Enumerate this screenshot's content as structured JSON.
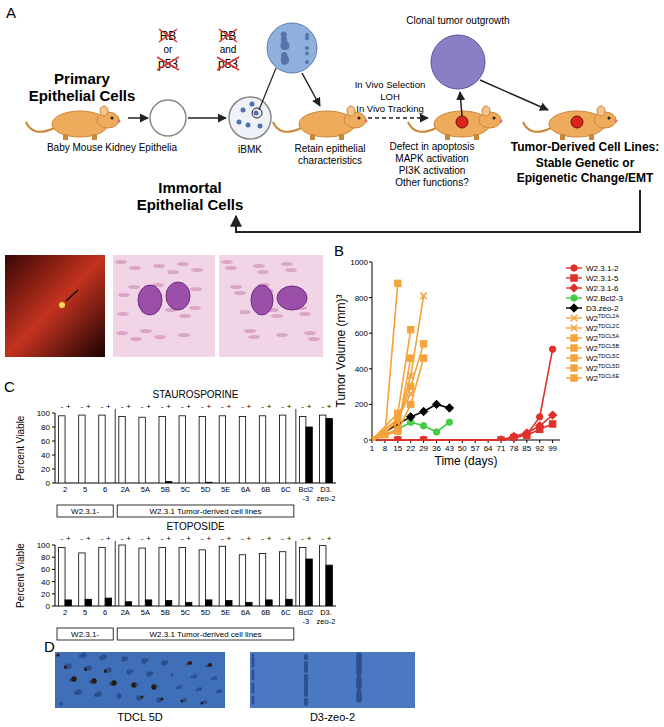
{
  "panel_labels": [
    "A",
    "B",
    "C",
    "D"
  ],
  "diagram": {
    "primary": [
      "Primary",
      "Epithelial Cells"
    ],
    "source": "Baby Mouse Kidney Epithelia",
    "single_loss": {
      "genes": [
        "RB",
        "p53"
      ],
      "joiner": "or"
    },
    "double_loss": {
      "genes": [
        "RB",
        "p53"
      ],
      "joiner": "and"
    },
    "culture": "iBMK",
    "immortal": [
      "Immortal",
      "Epithelial Cells"
    ],
    "selection": [
      "In Vivo Selection",
      "LOH",
      "In Vivo Tracking"
    ],
    "retain": [
      "Retain epithelial",
      "characteristics"
    ],
    "clonal": "Clonal tumor outgrowth",
    "functions": [
      "Defect in apoptosis",
      "MAPK activation",
      "PI3K activation",
      "Other functions?"
    ],
    "outcome_title": "Tumor-Derived Cell Lines:",
    "outcome": [
      "Stable Genetic or",
      "Epigenetic Change/EMT"
    ]
  },
  "images": {
    "captions": [
      "TDCL 5D",
      "D3-zeo-2"
    ]
  },
  "chart_data": [
    {
      "type": "line",
      "y_label": "Tumor Volume (mm)³",
      "x_label": "Time (days)",
      "xlim": [
        1,
        103
      ],
      "xticks": [
        1,
        8,
        15,
        22,
        29,
        36,
        43,
        50,
        57,
        64,
        71,
        78,
        85,
        92,
        99
      ],
      "ylim": [
        0,
        1000
      ],
      "yticks": [
        0,
        200,
        400,
        600,
        800,
        1000
      ],
      "legend": "right",
      "series": [
        {
          "name": "W2.3.1-2",
          "color": "#e0302a",
          "marker": "circle",
          "x": [
            1,
            15,
            29,
            71,
            78,
            85,
            92,
            99
          ],
          "values": [
            0,
            0,
            0,
            0,
            10,
            30,
            130,
            510
          ]
        },
        {
          "name": "W2.3.1-5",
          "color": "#e0302a",
          "marker": "square",
          "x": [
            1,
            15,
            29,
            71,
            78,
            85,
            92,
            99
          ],
          "values": [
            0,
            0,
            0,
            0,
            15,
            25,
            60,
            90
          ]
        },
        {
          "name": "W2.3.1-6",
          "color": "#e0302a",
          "marker": "diamond",
          "x": [
            1,
            15,
            29,
            71,
            78,
            85,
            92,
            99
          ],
          "values": [
            0,
            0,
            0,
            0,
            20,
            40,
            80,
            140
          ]
        },
        {
          "name": "W2.Bcl2-3",
          "color": "#44cc44",
          "marker": "circle",
          "x": [
            1,
            15,
            22,
            29,
            36,
            43
          ],
          "values": [
            0,
            60,
            100,
            80,
            45,
            100
          ]
        },
        {
          "name": "D3.zeo-2",
          "color": "#000000",
          "marker": "diamond",
          "x": [
            1,
            15,
            22,
            29,
            36,
            43
          ],
          "values": [
            0,
            90,
            130,
            160,
            200,
            180
          ]
        },
        {
          "name": "W2TDCL2A",
          "color": "#f5a33a",
          "marker": "x",
          "x": [
            1,
            8,
            15,
            22
          ],
          "values": [
            0,
            40,
            120,
            260
          ]
        },
        {
          "name": "W2TDCL2C",
          "color": "#f5a33a",
          "marker": "x",
          "x": [
            1,
            15,
            22,
            29
          ],
          "values": [
            0,
            100,
            360,
            810
          ]
        },
        {
          "name": "W2TDCL5A",
          "color": "#f5a33a",
          "marker": "square",
          "x": [
            1,
            8,
            15
          ],
          "values": [
            0,
            30,
            880
          ]
        },
        {
          "name": "W2TDCL5B",
          "color": "#f5a33a",
          "marker": "square",
          "x": [
            1,
            15,
            22
          ],
          "values": [
            0,
            150,
            620
          ]
        },
        {
          "name": "W2TDCL5C",
          "color": "#f5a33a",
          "marker": "square",
          "x": [
            1,
            15,
            22
          ],
          "values": [
            0,
            60,
            460
          ]
        },
        {
          "name": "W2TDCL5D",
          "color": "#f5a33a",
          "marker": "square",
          "x": [
            1,
            15,
            22,
            29
          ],
          "values": [
            0,
            120,
            300,
            540
          ]
        },
        {
          "name": "W2TDCL6E",
          "color": "#f5a33a",
          "marker": "square",
          "x": [
            1,
            15,
            22,
            29
          ],
          "values": [
            0,
            50,
            200,
            460
          ]
        }
      ]
    },
    {
      "type": "bar",
      "title": "STAUROSPORINE",
      "y_label": "Percent Viable",
      "categories": [
        "2",
        "5",
        "6",
        "2A",
        "5A",
        "5B",
        "5C",
        "5D",
        "5E",
        "6A",
        "6B",
        "6C",
        "Bcl2\n-3",
        "D3.\nzeo-2"
      ],
      "ylim": [
        0,
        100
      ],
      "yticks": [
        0,
        20,
        40,
        60,
        80,
        100
      ],
      "series": [
        {
          "name": "-",
          "color": "#ffffff",
          "values": [
            96,
            97,
            97,
            95,
            94,
            95,
            96,
            95,
            96,
            95,
            96,
            97,
            95,
            97
          ]
        },
        {
          "name": "+",
          "color": "#000000",
          "values": [
            0,
            0,
            0,
            0,
            0,
            2,
            0,
            1,
            0,
            0,
            0,
            0,
            80,
            92
          ]
        }
      ],
      "groups": [
        {
          "label": "W2.3.1-",
          "start": 0,
          "end": 2
        },
        {
          "label": "W2.3.1 Tumor-derived cell lines",
          "start": 3,
          "end": 11
        }
      ]
    },
    {
      "type": "bar",
      "title": "ETOPOSIDE",
      "y_label": "Percent Viable",
      "categories": [
        "2",
        "5",
        "6",
        "2A",
        "5A",
        "5B",
        "5C",
        "5D",
        "5E",
        "6A",
        "6B",
        "6C",
        "Bcl2\n-3",
        "D3.\nzeo-2"
      ],
      "ylim": [
        0,
        100
      ],
      "yticks": [
        0,
        20,
        40,
        60,
        80,
        100
      ],
      "series": [
        {
          "name": "-",
          "color": "#ffffff",
          "values": [
            96,
            87,
            96,
            100,
            95,
            96,
            96,
            92,
            98,
            84,
            86,
            89,
            96,
            99
          ]
        },
        {
          "name": "+",
          "color": "#000000",
          "values": [
            10,
            11,
            13,
            7,
            10,
            9,
            6,
            10,
            9,
            6,
            10,
            11,
            77,
            67
          ]
        }
      ],
      "groups": [
        {
          "label": "W2.3.1-",
          "start": 0,
          "end": 2
        },
        {
          "label": "W2.3.1 Tumor-derived cell lines",
          "start": 3,
          "end": 11
        }
      ]
    }
  ]
}
